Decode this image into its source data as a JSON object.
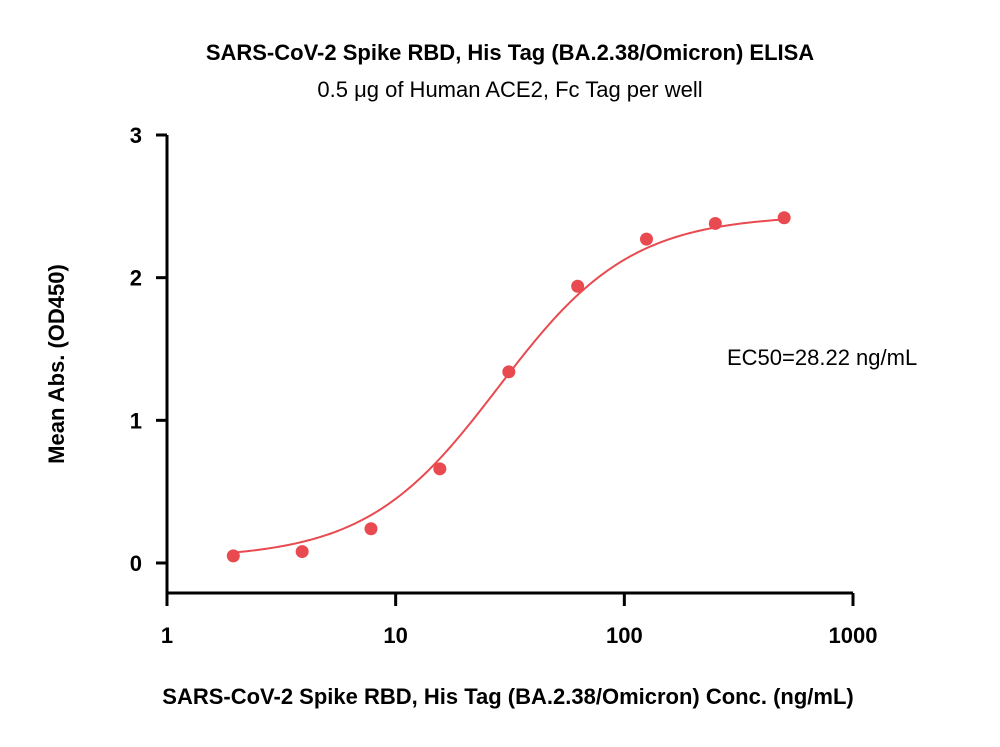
{
  "chart_data": {
    "type": "scatter",
    "title": "SARS-CoV-2 Spike RBD, His Tag (BA.2.38/Omicron) ELISA",
    "subtitle": "0.5 μg of Human ACE2, Fc Tag per well",
    "xlabel": "SARS-CoV-2 Spike RBD, His Tag (BA.2.38/Omicron) Conc. (ng/mL)",
    "ylabel": "Mean Abs. (OD450)",
    "xscale": "log",
    "xlim": [
      1,
      1000
    ],
    "ylim": [
      0,
      3
    ],
    "xticks": [
      1,
      10,
      100,
      1000
    ],
    "xtick_labels": [
      "1",
      "10",
      "100",
      "1000"
    ],
    "yticks": [
      0,
      1,
      2,
      3
    ],
    "ytick_labels": [
      "0",
      "1",
      "2",
      "3"
    ],
    "grid": false,
    "series": [
      {
        "color": "#e84a4f",
        "x": [
          1.95,
          3.9,
          7.8,
          15.6,
          31.25,
          62.5,
          125,
          250,
          500
        ],
        "y": [
          0.05,
          0.08,
          0.24,
          0.66,
          1.34,
          1.94,
          2.27,
          2.38,
          2.42
        ]
      }
    ],
    "fit_curve": {
      "model": "4PL",
      "ec50": 28.22
    },
    "annotations": [
      "EC50=28.22 ng/mL"
    ]
  }
}
